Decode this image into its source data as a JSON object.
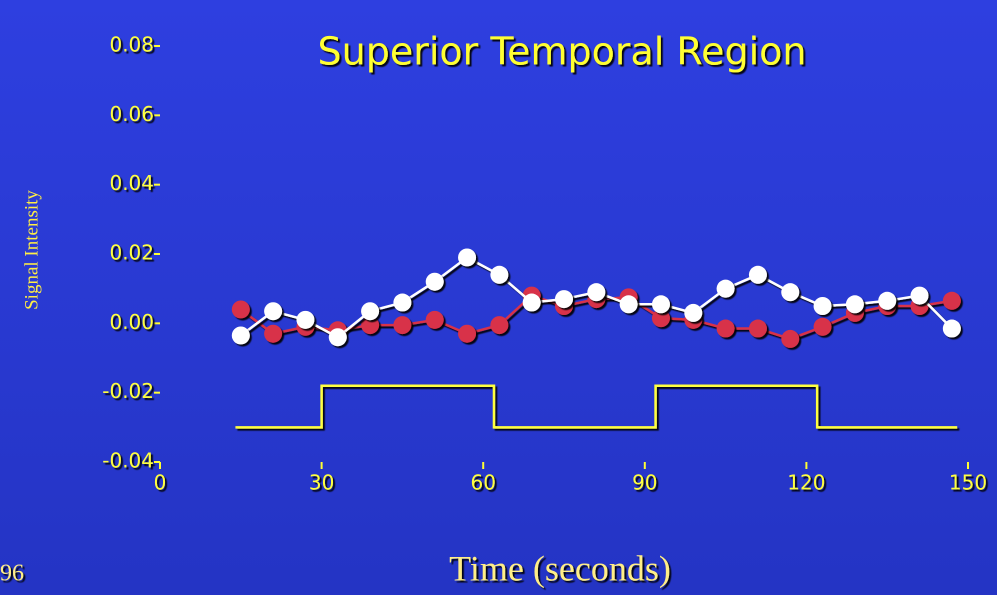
{
  "chart_data": {
    "type": "line",
    "title": "Superior Temporal Region",
    "xlabel": "Time (seconds)",
    "ylabel": "Signal Intensity",
    "annotation": "96",
    "xlim": [
      0,
      150
    ],
    "ylim": [
      -0.04,
      0.08
    ],
    "xticks": [
      0,
      30,
      60,
      90,
      120,
      150
    ],
    "yticks": [
      0.08,
      0.06,
      0.04,
      0.02,
      {
        "value": 0,
        "label": "0.00"
      },
      -0.02,
      -0.04
    ],
    "x": [
      15,
      21,
      27,
      33,
      39,
      45,
      51,
      57,
      63,
      69,
      75,
      81,
      87,
      93,
      99,
      105,
      111,
      117,
      123,
      129,
      135,
      141,
      147
    ],
    "series": [
      {
        "color": "#d8304a",
        "values": [
          0.004,
          -0.003,
          -0.001,
          -0.002,
          -0.0005,
          -0.0005,
          0.001,
          -0.003,
          -0.0005,
          0.008,
          0.005,
          0.007,
          0.0075,
          0.0015,
          0.001,
          -0.0015,
          -0.0015,
          -0.0045,
          -0.001,
          0.003,
          0.005,
          0.005,
          0.0065
        ]
      },
      {
        "color": "#ffffff",
        "values": [
          -0.0035,
          0.0035,
          0.001,
          -0.004,
          0.0035,
          0.006,
          0.012,
          0.019,
          0.014,
          0.006,
          0.007,
          0.009,
          0.0055,
          0.0055,
          0.003,
          0.01,
          0.014,
          0.009,
          0.005,
          0.0055,
          0.0065,
          0.008,
          -0.0015
        ]
      }
    ],
    "stimulus": {
      "color": "#ffff40",
      "x": [
        14,
        30,
        30,
        62,
        62,
        92,
        92,
        122,
        122,
        148
      ],
      "values": [
        -0.03,
        -0.03,
        -0.018,
        -0.018,
        -0.03,
        -0.03,
        -0.018,
        -0.018,
        -0.03,
        -0.03
      ]
    }
  }
}
